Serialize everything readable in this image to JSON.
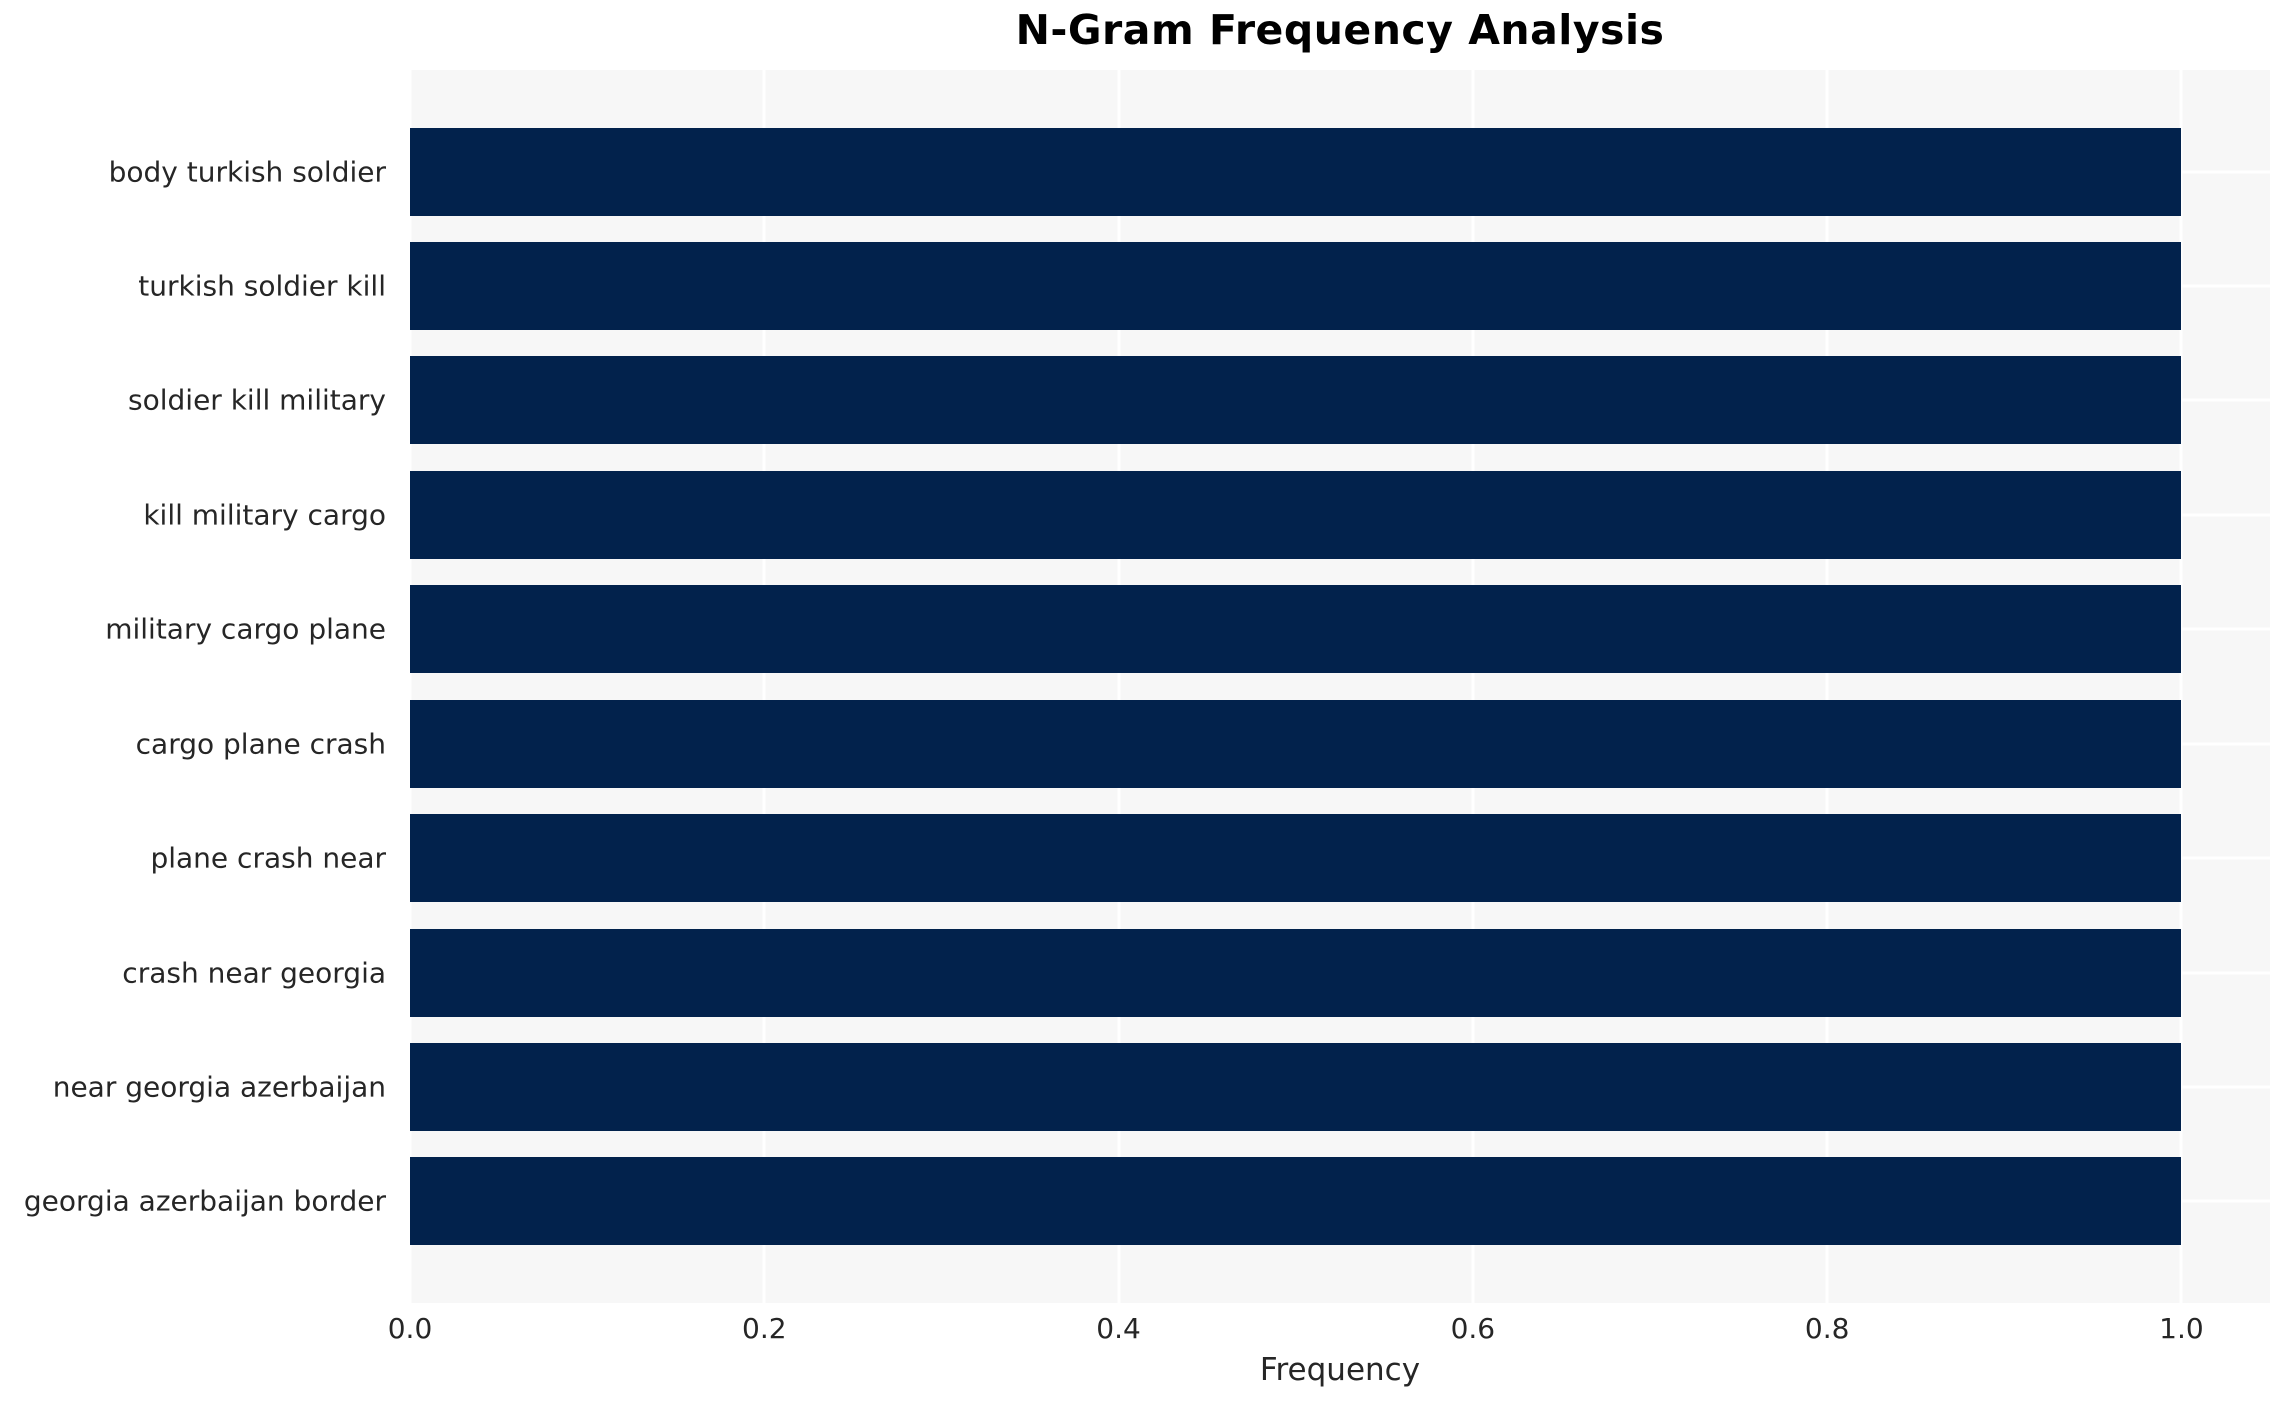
{
  "chart_data": {
    "type": "bar",
    "orientation": "horizontal",
    "title": "N-Gram Frequency Analysis",
    "xlabel": "Frequency",
    "ylabel": "",
    "categories": [
      "body turkish soldier",
      "turkish soldier kill",
      "soldier kill military",
      "kill military cargo",
      "military cargo plane",
      "cargo plane crash",
      "plane crash near",
      "crash near georgia",
      "near georgia azerbaijan",
      "georgia azerbaijan border"
    ],
    "values": [
      1.0,
      1.0,
      1.0,
      1.0,
      1.0,
      1.0,
      1.0,
      1.0,
      1.0,
      1.0
    ],
    "xlim": [
      0,
      1.05
    ],
    "xtick_labels": [
      "0.0",
      "0.2",
      "0.4",
      "0.6",
      "0.8",
      "1.0"
    ],
    "xtick_values": [
      0.0,
      0.2,
      0.4,
      0.6,
      0.8,
      1.0
    ],
    "grid": true,
    "legend": false,
    "colors": {
      "bar": "#02224c",
      "plot_background": "#f7f7f7",
      "grid_line": "#ffffff",
      "tick_text": "#262626",
      "title_text": "#000000"
    }
  }
}
